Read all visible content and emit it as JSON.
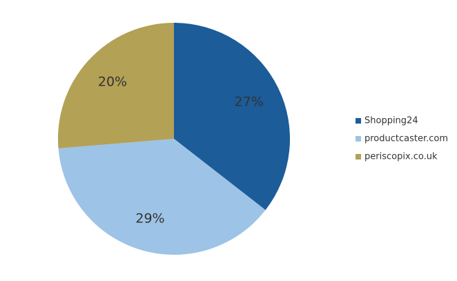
{
  "chart_data": {
    "type": "pie",
    "categories": [
      "Shopping24",
      "productcaster.com",
      "periscopix.co.uk"
    ],
    "values": [
      27,
      29,
      20
    ],
    "value_labels": [
      "27%",
      "29%",
      "20%"
    ],
    "colors": [
      "#1b5c99",
      "#9dc3e6",
      "#b3a155"
    ],
    "legend": "right"
  }
}
